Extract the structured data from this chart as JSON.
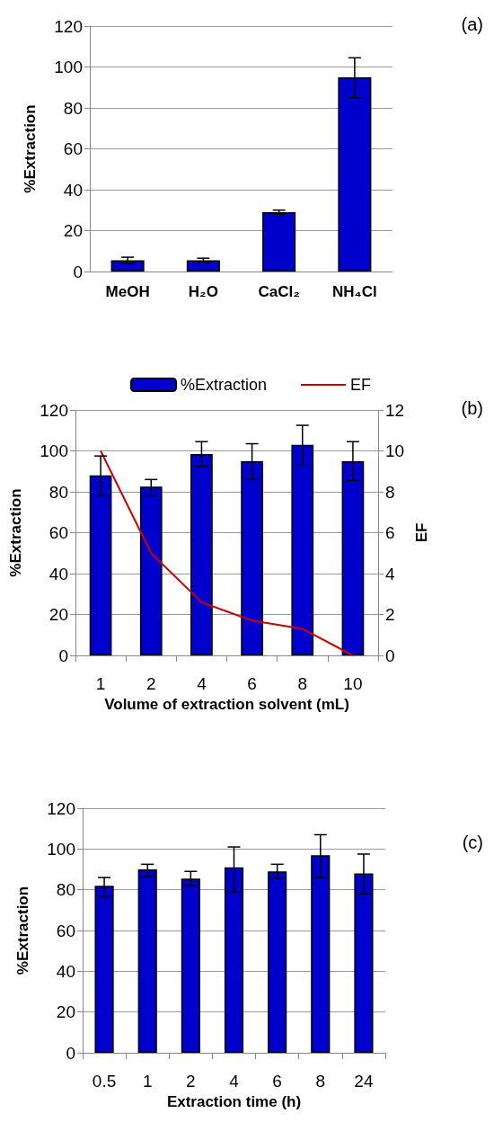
{
  "chart_data": [
    {
      "type": "bar",
      "annotations": [
        "(a)"
      ],
      "ylabel": "%Extraction",
      "categories": [
        "MeOH",
        "H₂O",
        "CaCl₂",
        "NH₄Cl"
      ],
      "series": [
        {
          "color": "#0000cc",
          "values": [
            5.5,
            5.5,
            29,
            95
          ],
          "errors": [
            [
              4,
              7
            ],
            [
              4.5,
              6.5
            ],
            [
              28,
              30
            ],
            [
              85,
              104.5
            ]
          ]
        }
      ],
      "ylim": [
        0,
        120
      ],
      "yticks": [
        0,
        20,
        40,
        60,
        80,
        100,
        120
      ],
      "grid": "y",
      "legend": false
    },
    {
      "type": "bar",
      "annotations": [
        "(b)"
      ],
      "ylabel": "%Extraction",
      "y2label": "EF",
      "xlabel": "Volume of extraction solvent (mL)",
      "categories": [
        "1",
        "2",
        "4",
        "6",
        "8",
        "10"
      ],
      "series": [
        {
          "name": "%Extraction",
          "color": "#0000cc",
          "values": [
            88,
            82.5,
            98.5,
            95,
            103,
            95
          ],
          "errors": [
            [
              78,
              97.5
            ],
            [
              78,
              86
            ],
            [
              92.5,
              104.5
            ],
            [
              86,
              103.5
            ],
            [
              93,
              112.5
            ],
            [
              85.5,
              104.5
            ]
          ]
        },
        {
          "name": "EF",
          "type": "line",
          "axis": "y2",
          "color": "#cc0000",
          "values": [
            10,
            5,
            2.6,
            1.7,
            1.3,
            0
          ]
        }
      ],
      "ylim": [
        0,
        120
      ],
      "yticks": [
        0,
        20,
        40,
        60,
        80,
        100,
        120
      ],
      "y2lim": [
        0,
        12
      ],
      "y2ticks": [
        0,
        2,
        4,
        6,
        8,
        10,
        12
      ],
      "grid": "y",
      "legend": "top",
      "marker": "none"
    },
    {
      "type": "bar",
      "annotations": [
        "(c)"
      ],
      "ylabel": "%Extraction",
      "xlabel": "Extraction time (h)",
      "categories": [
        "0.5",
        "1",
        "2",
        "4",
        "6",
        "8",
        "24"
      ],
      "series": [
        {
          "color": "#0000cc",
          "values": [
            82,
            90,
            85.5,
            91,
            89,
            97,
            88
          ],
          "errors": [
            [
              76.5,
              86
            ],
            [
              86.5,
              92.5
            ],
            [
              82,
              89
            ],
            [
              79,
              101
            ],
            [
              85.5,
              92.5
            ],
            [
              86,
              107
            ],
            [
              78,
              97.5
            ]
          ]
        }
      ],
      "ylim": [
        0,
        120
      ],
      "yticks": [
        0,
        20,
        40,
        60,
        80,
        100,
        120
      ],
      "grid": "y",
      "legend": false
    }
  ]
}
